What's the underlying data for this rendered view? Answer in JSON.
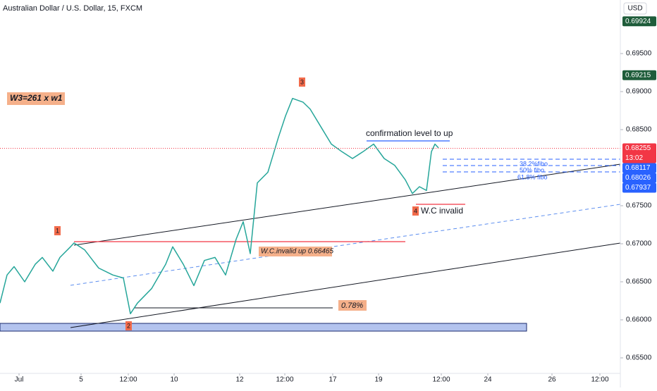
{
  "chart_data": {
    "type": "line",
    "title": "Australian Dollar / U.S. Dollar, 15, FXCM",
    "currency": "USD",
    "x": [
      0,
      1,
      2,
      3.5,
      5,
      6,
      7.5,
      8.5,
      10,
      10.5,
      12,
      14,
      16,
      17.5,
      18.5,
      19.5,
      21.5,
      23.5,
      24.5,
      26,
      27.5,
      29,
      30.5,
      32,
      33.5,
      34.5,
      35.5,
      36.5,
      38,
      39.5,
      40.5,
      41.5,
      43,
      44,
      45.5,
      47,
      48.5,
      50,
      51.5,
      53,
      54.5,
      56,
      57.5,
      58.5,
      59.5,
      60.5,
      61.2,
      61.7,
      62.2
    ],
    "series": [
      {
        "color": "#26a69a",
        "values": [
          0.6622,
          0.6659,
          0.667,
          0.665,
          0.6673,
          0.6682,
          0.6664,
          0.6682,
          0.6696,
          0.6701,
          0.6692,
          0.6668,
          0.6659,
          0.6655,
          0.6608,
          0.6622,
          0.6641,
          0.6673,
          0.6696,
          0.6673,
          0.6645,
          0.6678,
          0.6682,
          0.6659,
          0.6706,
          0.6729,
          0.6687,
          0.678,
          0.6794,
          0.684,
          0.6868,
          0.6891,
          0.6886,
          0.6877,
          0.6854,
          0.6831,
          0.6821,
          0.6812,
          0.6821,
          0.6831,
          0.6812,
          0.6803,
          0.6784,
          0.6766,
          0.6775,
          0.677,
          0.6821,
          0.6831,
          0.6826
        ]
      }
    ],
    "xlim": [
      0,
      88
    ],
    "xticks": [
      {
        "value": 2.7,
        "label": "Jul"
      },
      {
        "value": 11.5,
        "label": "5"
      },
      {
        "value": 18.2,
        "label": "12:00"
      },
      {
        "value": 24.7,
        "label": "10"
      },
      {
        "value": 34.0,
        "label": "12"
      },
      {
        "value": 40.4,
        "label": "12:00"
      },
      {
        "value": 47.2,
        "label": "17"
      },
      {
        "value": 53.7,
        "label": "19"
      },
      {
        "value": 62.6,
        "label": "12:00"
      },
      {
        "value": 69.2,
        "label": "24"
      },
      {
        "value": 78.3,
        "label": "26"
      },
      {
        "value": 85.1,
        "label": "12:00"
      }
    ],
    "ylim": [
      0.65296,
      0.70204
    ],
    "yticks": [
      {
        "value": 0.695,
        "label": "0.69500"
      },
      {
        "value": 0.69,
        "label": "0.69000"
      },
      {
        "value": 0.685,
        "label": "0.68500"
      },
      {
        "value": 0.675,
        "label": "0.67500"
      },
      {
        "value": 0.67,
        "label": "0.67000"
      },
      {
        "value": 0.665,
        "label": "0.66500"
      },
      {
        "value": 0.66,
        "label": "0.66000"
      },
      {
        "value": 0.655,
        "label": "0.65500"
      }
    ],
    "price_labels": [
      {
        "value": 0.69924,
        "color": "#1e5c3a"
      },
      {
        "value": 0.69215,
        "color": "#1e5c3a"
      },
      {
        "value": 0.68255,
        "color": "#f23645",
        "countdown": "13:02"
      },
      {
        "value": 0.68117,
        "color": "#2962ff"
      },
      {
        "value": 0.68026,
        "color": "#2962ff"
      },
      {
        "value": 0.67937,
        "color": "#2962ff"
      }
    ],
    "annotations": {
      "wave_ratio": "W3=261 x w1",
      "wave_1": "1",
      "wave_2": "2",
      "wave_3": "3",
      "wave_4": "4",
      "confirmation": "confirmation level to up",
      "wc_invalid": "W.C invalid",
      "wc_invalid_up": "W.C.invalid up 0.66465",
      "percent": "0.78%",
      "fibo_382": "38.2%fibo",
      "fibo_50": "50% fibo",
      "fibo_618": "61.8% fibo"
    }
  }
}
